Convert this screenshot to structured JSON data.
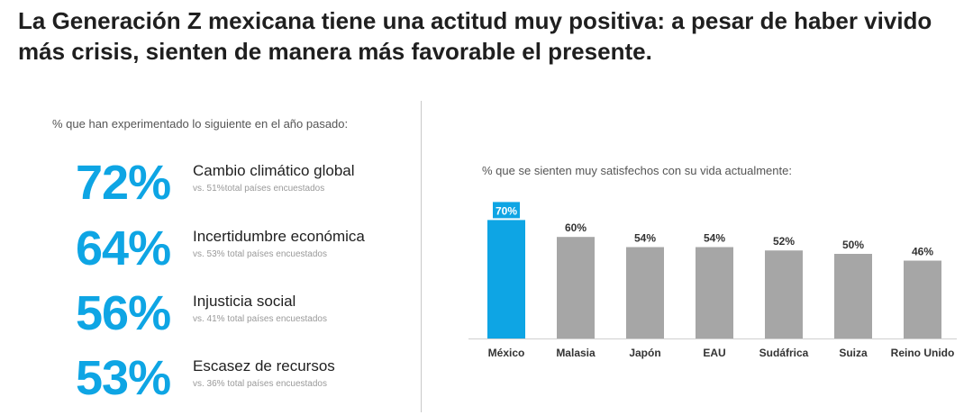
{
  "title": "La Generación Z mexicana tiene una actitud muy positiva: a pesar de haber vivido más crisis, sienten de manera más favorable el presente.",
  "left_panel": {
    "subtitle": "% que han experimentado lo siguiente en el año pasado:",
    "stats": [
      {
        "pct": "72%",
        "label": "Cambio climático global",
        "compare": "vs. 51%total países encuestados"
      },
      {
        "pct": "64%",
        "label": "Incertidumbre económica",
        "compare": "vs. 53% total países encuestados"
      },
      {
        "pct": "56%",
        "label": "Injusticia social",
        "compare": "vs. 41% total países encuestados"
      },
      {
        "pct": "53%",
        "label": "Escasez de recursos",
        "compare": "vs. 36% total países encuestados"
      }
    ]
  },
  "colors": {
    "accent": "#0ea5e4",
    "bar": "#a6a6a6",
    "highlight_label_bg": "#0ea5e4"
  },
  "chart_data": {
    "type": "bar",
    "title": "% que se sienten muy satisfechos con su vida actualmente:",
    "categories": [
      "México",
      "Malasia",
      "Japón",
      "EAU",
      "Sudáfrica",
      "Suiza",
      "Reino Unido"
    ],
    "values": [
      70,
      60,
      54,
      54,
      52,
      50,
      46
    ],
    "value_labels": [
      "70%",
      "60%",
      "54%",
      "54%",
      "52%",
      "50%",
      "46%"
    ],
    "highlight_index": 0,
    "xlabel": "",
    "ylabel": "",
    "ylim": [
      0,
      100
    ],
    "grid": false,
    "legend": "none"
  }
}
